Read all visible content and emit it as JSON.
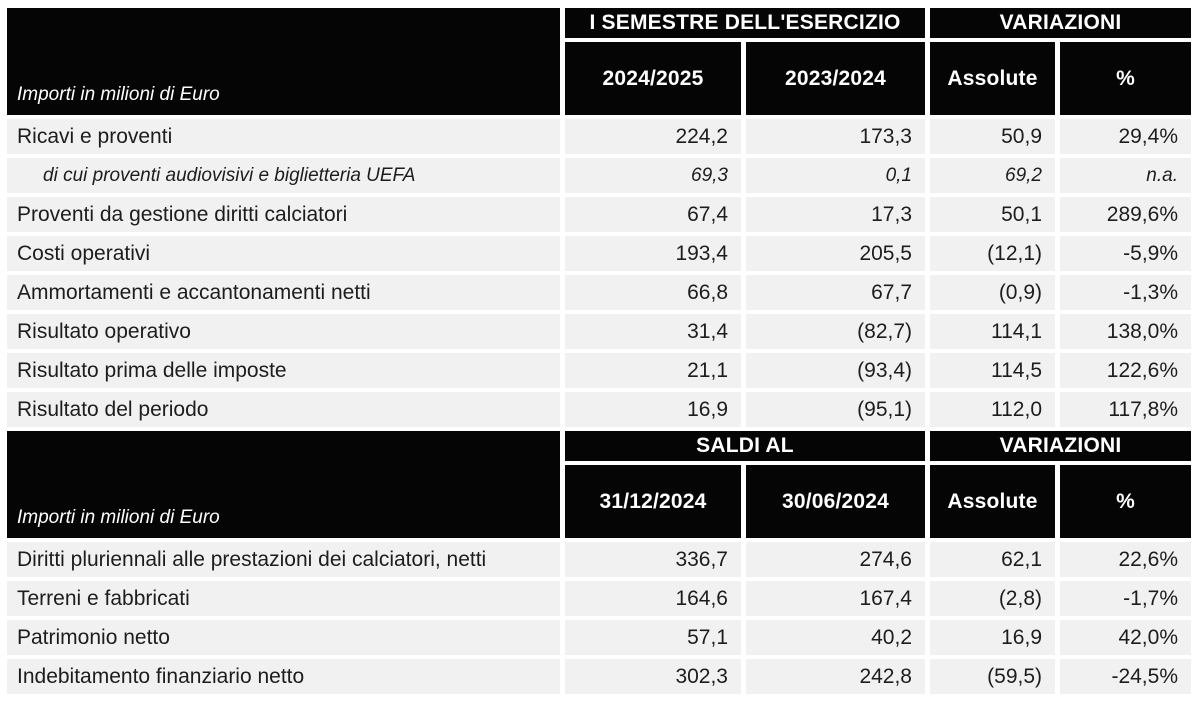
{
  "colors": {
    "header_bg": "#050505",
    "header_text": "#ffffff",
    "row_bg": "#f1f1f1",
    "row_text": "#1d1d1d",
    "background": "#ffffff"
  },
  "table1": {
    "unit_label": "Importi in milioni di Euro",
    "group_headers": [
      "I SEMESTRE DELL'ESERCIZIO",
      "VARIAZIONI"
    ],
    "col_headers": [
      "2024/2025",
      "2023/2024",
      "Assolute",
      "%"
    ],
    "rows": [
      {
        "label": "Ricavi e proventi",
        "values": [
          "224,2",
          "173,3",
          "50,9",
          "29,4%"
        ]
      },
      {
        "label": "di cui proventi audiovisivi e biglietteria UEFA",
        "values": [
          "69,3",
          "0,1",
          "69,2",
          "n.a."
        ]
      },
      {
        "label": "Proventi da gestione diritti calciatori",
        "values": [
          "67,4",
          "17,3",
          "50,1",
          "289,6%"
        ]
      },
      {
        "label": "Costi operativi",
        "values": [
          "193,4",
          "205,5",
          "(12,1)",
          "-5,9%"
        ]
      },
      {
        "label": "Ammortamenti e accantonamenti netti",
        "values": [
          "66,8",
          "67,7",
          "(0,9)",
          "-1,3%"
        ]
      },
      {
        "label": "Risultato operativo",
        "values": [
          "31,4",
          "(82,7)",
          "114,1",
          "138,0%"
        ]
      },
      {
        "label": "Risultato prima delle imposte",
        "values": [
          "21,1",
          "(93,4)",
          "114,5",
          "122,6%"
        ]
      },
      {
        "label": "Risultato del periodo",
        "values": [
          "16,9",
          "(95,1)",
          "112,0",
          "117,8%"
        ]
      }
    ]
  },
  "table2": {
    "unit_label": "Importi in milioni di Euro",
    "group_headers": [
      "SALDI AL",
      "VARIAZIONI"
    ],
    "col_headers": [
      "31/12/2024",
      "30/06/2024",
      "Assolute",
      "%"
    ],
    "rows": [
      {
        "label": "Diritti pluriennali alle prestazioni dei calciatori, netti",
        "values": [
          "336,7",
          "274,6",
          "62,1",
          "22,6%"
        ]
      },
      {
        "label": "Terreni e fabbricati",
        "values": [
          "164,6",
          "167,4",
          "(2,8)",
          "-1,7%"
        ]
      },
      {
        "label": "Patrimonio netto",
        "values": [
          "57,1",
          "40,2",
          "16,9",
          "42,0%"
        ]
      },
      {
        "label": "Indebitamento finanziario netto",
        "values": [
          "302,3",
          "242,8",
          "(59,5)",
          "-24,5%"
        ]
      }
    ]
  }
}
